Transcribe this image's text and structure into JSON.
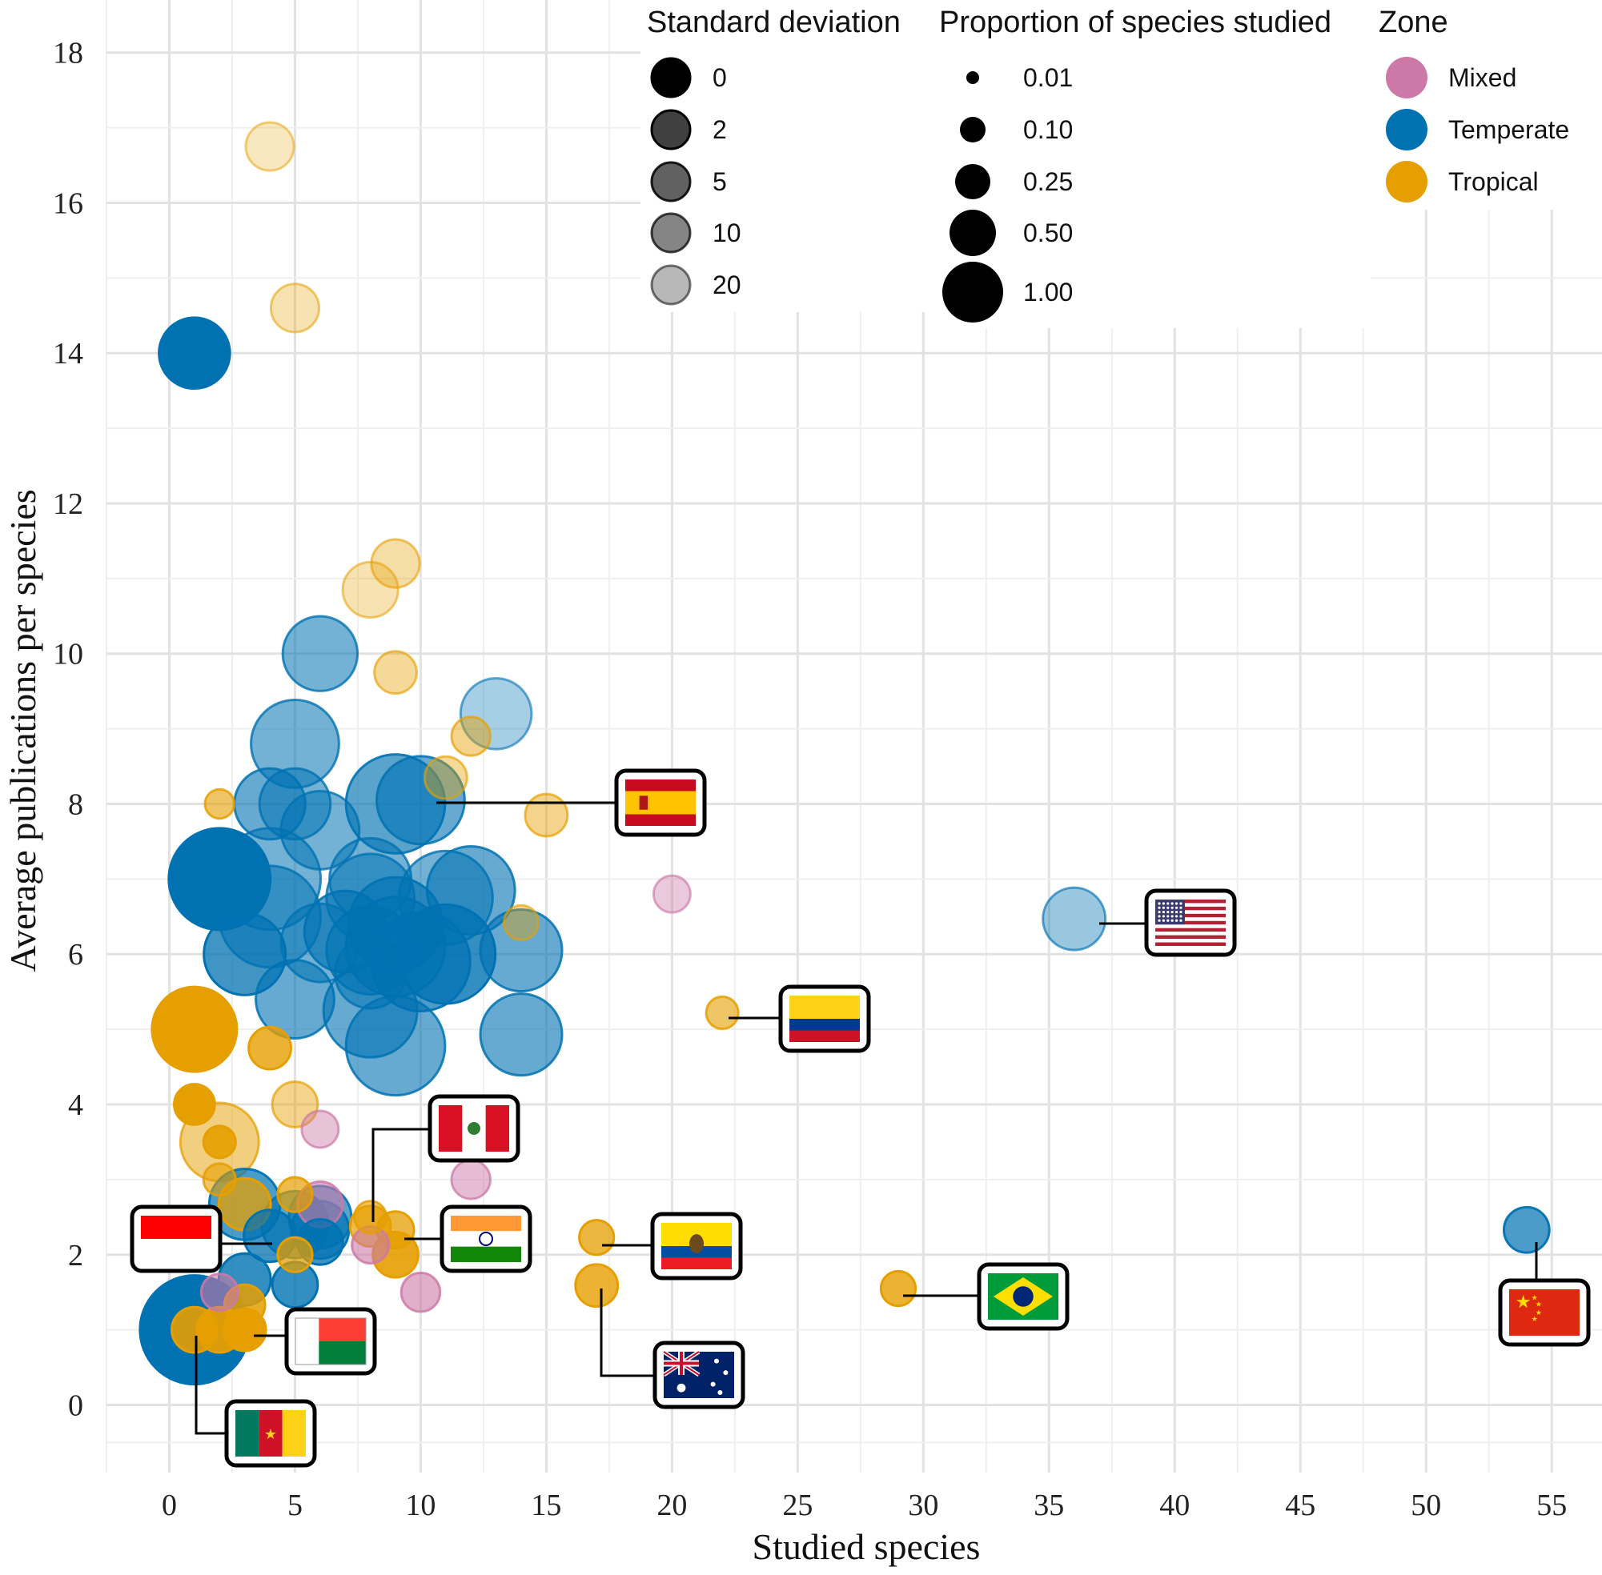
{
  "chart_data": {
    "type": "scatter",
    "title": "",
    "xlabel": "Studied species",
    "ylabel": "Average publications per species",
    "xlim": [
      -2.5,
      57
    ],
    "ylim": [
      -0.9,
      18.7
    ],
    "xticks": [
      0,
      5,
      10,
      15,
      20,
      25,
      30,
      35,
      40,
      45,
      50,
      55
    ],
    "yticks": [
      0,
      2,
      4,
      6,
      8,
      10,
      12,
      14,
      16,
      18
    ],
    "grid": true,
    "colors": {
      "Mixed": "#CC79A7",
      "Temperate": "#0072B2",
      "Tropical": "#E69F00"
    },
    "legends": {
      "sd": {
        "title": "Standard deviation",
        "entries": [
          {
            "label": "0",
            "alpha": 1.0
          },
          {
            "label": "2",
            "alpha": 0.75
          },
          {
            "label": "5",
            "alpha": 0.62
          },
          {
            "label": "10",
            "alpha": 0.48
          },
          {
            "label": "20",
            "alpha": 0.28
          }
        ]
      },
      "proportion": {
        "title": "Proportion of species studied",
        "entries": [
          {
            "label": "0.01",
            "value": 0.01
          },
          {
            "label": "0.10",
            "value": 0.1
          },
          {
            "label": "0.25",
            "value": 0.25
          },
          {
            "label": "0.50",
            "value": 0.5
          },
          {
            "label": "1.00",
            "value": 1.0
          }
        ]
      },
      "zone": {
        "title": "Zone",
        "entries": [
          {
            "label": "Mixed",
            "zone": "Mixed"
          },
          {
            "label": "Temperate",
            "zone": "Temperate"
          },
          {
            "label": "Tropical",
            "zone": "Tropical"
          }
        ]
      }
    },
    "points": [
      {
        "x": 4,
        "y": 16.75,
        "zone": "Tropical",
        "prop": 0.12,
        "alpha": 0.25
      },
      {
        "x": 5,
        "y": 14.6,
        "zone": "Tropical",
        "prop": 0.12,
        "alpha": 0.3
      },
      {
        "x": 1,
        "y": 14.0,
        "zone": "Temperate",
        "prop": 0.35,
        "alpha": 1.0
      },
      {
        "x": 9,
        "y": 11.2,
        "zone": "Tropical",
        "prop": 0.12,
        "alpha": 0.35
      },
      {
        "x": 8,
        "y": 10.85,
        "zone": "Tropical",
        "prop": 0.18,
        "alpha": 0.3
      },
      {
        "x": 6,
        "y": 10.0,
        "zone": "Temperate",
        "prop": 0.4,
        "alpha": 0.55
      },
      {
        "x": 9,
        "y": 9.75,
        "zone": "Tropical",
        "prop": 0.08,
        "alpha": 0.4
      },
      {
        "x": 13,
        "y": 9.2,
        "zone": "Temperate",
        "prop": 0.35,
        "alpha": 0.35
      },
      {
        "x": 12,
        "y": 8.9,
        "zone": "Tropical",
        "prop": 0.06,
        "alpha": 0.45
      },
      {
        "x": 5,
        "y": 8.8,
        "zone": "Temperate",
        "prop": 0.6,
        "alpha": 0.55
      },
      {
        "x": 11,
        "y": 8.35,
        "zone": "Tropical",
        "prop": 0.08,
        "alpha": 0.4
      },
      {
        "x": 2,
        "y": 8.0,
        "zone": "Tropical",
        "prop": 0.02,
        "alpha": 0.6
      },
      {
        "x": 4,
        "y": 8.0,
        "zone": "Temperate",
        "prop": 0.35,
        "alpha": 0.6
      },
      {
        "x": 5,
        "y": 8.0,
        "zone": "Temperate",
        "prop": 0.35,
        "alpha": 0.55
      },
      {
        "x": 9,
        "y": 8.0,
        "zone": "Temperate",
        "prop": 0.8,
        "alpha": 0.65
      },
      {
        "x": 10,
        "y": 8.05,
        "zone": "Temperate",
        "prop": 0.6,
        "alpha": 0.6
      },
      {
        "x": 15,
        "y": 7.85,
        "zone": "Tropical",
        "prop": 0.08,
        "alpha": 0.45
      },
      {
        "x": 6,
        "y": 7.65,
        "zone": "Temperate",
        "prop": 0.45,
        "alpha": 0.55
      },
      {
        "x": 2,
        "y": 7.0,
        "zone": "Temperate",
        "prop": 0.85,
        "alpha": 1.0
      },
      {
        "x": 4,
        "y": 7.0,
        "zone": "Temperate",
        "prop": 0.85,
        "alpha": 0.55
      },
      {
        "x": 8,
        "y": 7.0,
        "zone": "Temperate",
        "prop": 0.5,
        "alpha": 0.55
      },
      {
        "x": 20,
        "y": 6.8,
        "zone": "Mixed",
        "prop": 0.05,
        "alpha": 0.4
      },
      {
        "x": 8,
        "y": 6.75,
        "zone": "Temperate",
        "prop": 0.6,
        "alpha": 0.55
      },
      {
        "x": 11,
        "y": 6.75,
        "zone": "Temperate",
        "prop": 0.7,
        "alpha": 0.55
      },
      {
        "x": 12,
        "y": 6.85,
        "zone": "Temperate",
        "prop": 0.6,
        "alpha": 0.6
      },
      {
        "x": 4,
        "y": 6.5,
        "zone": "Temperate",
        "prop": 0.85,
        "alpha": 0.55
      },
      {
        "x": 36,
        "y": 6.47,
        "zone": "Temperate",
        "prop": 0.25,
        "alpha": 0.4
      },
      {
        "x": 14,
        "y": 6.42,
        "zone": "Tropical",
        "prop": 0.04,
        "alpha": 0.4
      },
      {
        "x": 9,
        "y": 6.4,
        "zone": "Temperate",
        "prop": 0.7,
        "alpha": 0.65
      },
      {
        "x": 7,
        "y": 6.3,
        "zone": "Temperate",
        "prop": 0.5,
        "alpha": 0.65
      },
      {
        "x": 6,
        "y": 6.15,
        "zone": "Temperate",
        "prop": 0.45,
        "alpha": 0.55
      },
      {
        "x": 9,
        "y": 6.1,
        "zone": "Temperate",
        "prop": 0.8,
        "alpha": 0.65
      },
      {
        "x": 8,
        "y": 6.05,
        "zone": "Temperate",
        "prop": 0.6,
        "alpha": 0.6
      },
      {
        "x": 11,
        "y": 6.0,
        "zone": "Temperate",
        "prop": 0.8,
        "alpha": 0.8
      },
      {
        "x": 3,
        "y": 6.0,
        "zone": "Temperate",
        "prop": 0.5,
        "alpha": 0.75
      },
      {
        "x": 10,
        "y": 5.9,
        "zone": "Temperate",
        "prop": 0.8,
        "alpha": 0.7
      },
      {
        "x": 14,
        "y": 6.05,
        "zone": "Temperate",
        "prop": 0.5,
        "alpha": 0.6
      },
      {
        "x": 8,
        "y": 5.75,
        "zone": "Temperate",
        "prop": 0.35,
        "alpha": 0.55
      },
      {
        "x": 5,
        "y": 5.4,
        "zone": "Temperate",
        "prop": 0.45,
        "alpha": 0.6
      },
      {
        "x": 8,
        "y": 5.25,
        "zone": "Temperate",
        "prop": 0.7,
        "alpha": 0.6
      },
      {
        "x": 22,
        "y": 5.22,
        "zone": "Tropical",
        "prop": 0.03,
        "alpha": 0.6
      },
      {
        "x": 1,
        "y": 5.0,
        "zone": "Tropical",
        "prop": 0.55,
        "alpha": 1.0
      },
      {
        "x": 14,
        "y": 4.93,
        "zone": "Temperate",
        "prop": 0.5,
        "alpha": 0.6
      },
      {
        "x": 9,
        "y": 4.78,
        "zone": "Temperate",
        "prop": 0.8,
        "alpha": 0.6
      },
      {
        "x": 4,
        "y": 4.75,
        "zone": "Tropical",
        "prop": 0.08,
        "alpha": 0.8
      },
      {
        "x": 1,
        "y": 4.0,
        "zone": "Tropical",
        "prop": 0.07,
        "alpha": 1.0
      },
      {
        "x": 5,
        "y": 4.0,
        "zone": "Tropical",
        "prop": 0.1,
        "alpha": 0.45
      },
      {
        "x": 6,
        "y": 3.67,
        "zone": "Mixed",
        "prop": 0.05,
        "alpha": 0.45
      },
      {
        "x": 2,
        "y": 3.5,
        "zone": "Tropical",
        "prop": 0.45,
        "alpha": 0.5
      },
      {
        "x": 2,
        "y": 3.5,
        "zone": "Tropical",
        "prop": 0.03,
        "alpha": 0.9
      },
      {
        "x": 2,
        "y": 3.0,
        "zone": "Tropical",
        "prop": 0.03,
        "alpha": 0.6
      },
      {
        "x": 12,
        "y": 3.0,
        "zone": "Mixed",
        "prop": 0.06,
        "alpha": 0.5
      },
      {
        "x": 5,
        "y": 2.8,
        "zone": "Tropical",
        "prop": 0.04,
        "alpha": 0.7
      },
      {
        "x": 3,
        "y": 2.67,
        "zone": "Temperate",
        "prop": 0.35,
        "alpha": 0.7
      },
      {
        "x": 3,
        "y": 2.67,
        "zone": "Tropical",
        "prop": 0.15,
        "alpha": 0.75
      },
      {
        "x": 6,
        "y": 2.67,
        "zone": "Mixed",
        "prop": 0.1,
        "alpha": 0.6
      },
      {
        "x": 6,
        "y": 2.5,
        "zone": "Temperate",
        "prop": 0.25,
        "alpha": 0.65
      },
      {
        "x": 8,
        "y": 2.5,
        "zone": "Tropical",
        "prop": 0.03,
        "alpha": 0.6
      },
      {
        "x": 5,
        "y": 2.4,
        "zone": "Temperate",
        "prop": 0.3,
        "alpha": 0.65
      },
      {
        "x": 8,
        "y": 2.38,
        "zone": "Tropical",
        "prop": 0.07,
        "alpha": 0.7
      },
      {
        "x": 6,
        "y": 2.33,
        "zone": "Temperate",
        "prop": 0.2,
        "alpha": 0.7
      },
      {
        "x": 9,
        "y": 2.33,
        "zone": "Tropical",
        "prop": 0.05,
        "alpha": 0.75
      },
      {
        "x": 4,
        "y": 2.25,
        "zone": "Temperate",
        "prop": 0.15,
        "alpha": 0.75
      },
      {
        "x": 17,
        "y": 2.23,
        "zone": "Tropical",
        "prop": 0.04,
        "alpha": 0.75
      },
      {
        "x": 6,
        "y": 2.17,
        "zone": "Temperate",
        "prop": 0.1,
        "alpha": 0.75
      },
      {
        "x": 8,
        "y": 2.13,
        "zone": "Mixed",
        "prop": 0.05,
        "alpha": 0.6
      },
      {
        "x": 5,
        "y": 2.0,
        "zone": "Tropical",
        "prop": 0.04,
        "alpha": 0.75
      },
      {
        "x": 9,
        "y": 2.0,
        "zone": "Tropical",
        "prop": 0.1,
        "alpha": 0.9
      },
      {
        "x": 54,
        "y": 2.33,
        "zone": "Temperate",
        "prop": 0.1,
        "alpha": 0.7
      },
      {
        "x": 3,
        "y": 1.67,
        "zone": "Temperate",
        "prop": 0.15,
        "alpha": 0.8
      },
      {
        "x": 5,
        "y": 1.6,
        "zone": "Temperate",
        "prop": 0.1,
        "alpha": 0.8
      },
      {
        "x": 17,
        "y": 1.59,
        "zone": "Tropical",
        "prop": 0.08,
        "alpha": 0.8
      },
      {
        "x": 29,
        "y": 1.55,
        "zone": "Tropical",
        "prop": 0.04,
        "alpha": 0.8
      },
      {
        "x": 2,
        "y": 1.5,
        "zone": "Mixed",
        "prop": 0.05,
        "alpha": 0.6
      },
      {
        "x": 10,
        "y": 1.5,
        "zone": "Mixed",
        "prop": 0.06,
        "alpha": 0.6
      },
      {
        "x": 3,
        "y": 1.33,
        "zone": "Tropical",
        "prop": 0.07,
        "alpha": 0.85
      },
      {
        "x": 1,
        "y": 1.0,
        "zone": "Temperate",
        "prop": 1.0,
        "alpha": 1.0
      },
      {
        "x": 1,
        "y": 1.0,
        "zone": "Tropical",
        "prop": 0.1,
        "alpha": 0.9
      },
      {
        "x": 2,
        "y": 1.0,
        "zone": "Tropical",
        "prop": 0.1,
        "alpha": 0.95
      },
      {
        "x": 3,
        "y": 1.0,
        "zone": "Tropical",
        "prop": 0.08,
        "alpha": 1.0
      }
    ],
    "flag_annotations": [
      {
        "country": "Spain",
        "flag": "spain",
        "x": 10.5,
        "y": 8.1
      },
      {
        "country": "United States",
        "flag": "usa",
        "x": 36.3,
        "y": 6.47
      },
      {
        "country": "Colombia",
        "flag": "colombia",
        "x": 22,
        "y": 5.22
      },
      {
        "country": "Peru",
        "flag": "peru",
        "x": 8,
        "y": 2.5
      },
      {
        "country": "Indonesia",
        "flag": "indonesia",
        "x": 4,
        "y": 2.25
      },
      {
        "country": "India",
        "flag": "india",
        "x": 9.3,
        "y": 2.33
      },
      {
        "country": "Ecuador",
        "flag": "ecuador",
        "x": 17,
        "y": 2.23
      },
      {
        "country": "Brazil",
        "flag": "brazil",
        "x": 29,
        "y": 1.55
      },
      {
        "country": "China",
        "flag": "china",
        "x": 54,
        "y": 2.33
      },
      {
        "country": "Madagascar",
        "flag": "madagascar",
        "x": 3,
        "y": 1.0
      },
      {
        "country": "Australia",
        "flag": "australia",
        "x": 17,
        "y": 1.59
      },
      {
        "country": "Cameroon",
        "flag": "cameroon",
        "x": 1,
        "y": 1.0
      }
    ]
  }
}
